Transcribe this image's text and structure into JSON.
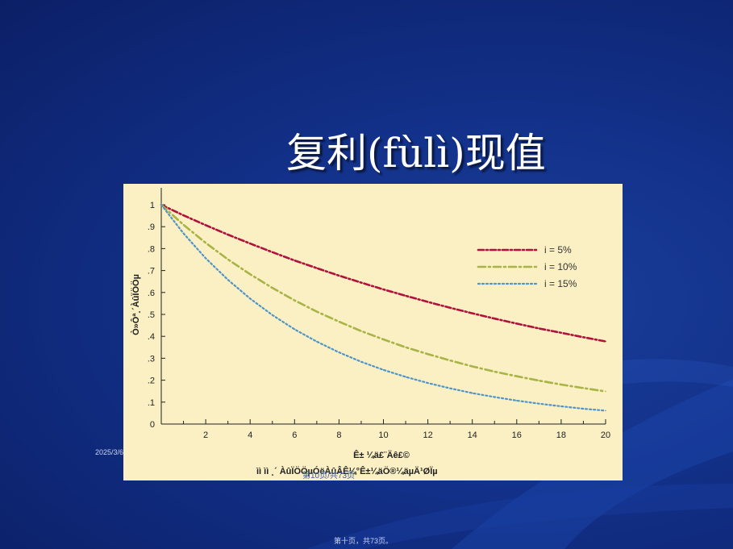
{
  "slide": {
    "title": "复利(fùlì)现值",
    "date": "2025/3/6",
    "footer_page": "第十页，共73页。",
    "overlay_page": "第10页/共73页"
  },
  "colors": {
    "background": "#123088",
    "chart_bg": "#fbefc4",
    "series_5": "#b0123c",
    "series_10": "#a8b445",
    "series_15": "#4f95c8"
  },
  "chart_data": {
    "type": "line",
    "ylabel": "Ò»Ôª¸´ÀûÏÖÖµ",
    "xlabel": "Ê±   ¼ä£¨Äê£©",
    "note": "ìì ìì ¸´  ÀûÏÖÖµÓëÀûÂÊ¼°Ê±¼äÖ®¼äµÄ¹ØÏµ",
    "xlim": [
      0,
      20
    ],
    "ylim": [
      0,
      1
    ],
    "x_ticks": [
      "2",
      "4",
      "6",
      "8",
      "10",
      "12",
      "14",
      "16",
      "18",
      "20"
    ],
    "y_ticks": [
      "0",
      ".1",
      ".2",
      ".3",
      ".4",
      ".5",
      ".6",
      ".7",
      ".8",
      ".9",
      "1"
    ],
    "legend_position": "top-right",
    "grid": false,
    "x": [
      0,
      1,
      2,
      3,
      4,
      5,
      6,
      7,
      8,
      9,
      10,
      11,
      12,
      13,
      14,
      15,
      16,
      17,
      18,
      19,
      20
    ],
    "series": [
      {
        "name": "i = 5%",
        "values": [
          1.0,
          0.952,
          0.907,
          0.864,
          0.823,
          0.784,
          0.746,
          0.711,
          0.677,
          0.645,
          0.614,
          0.585,
          0.557,
          0.53,
          0.505,
          0.481,
          0.458,
          0.436,
          0.416,
          0.396,
          0.377
        ]
      },
      {
        "name": "i = 10%",
        "values": [
          1.0,
          0.909,
          0.826,
          0.751,
          0.683,
          0.621,
          0.564,
          0.513,
          0.467,
          0.424,
          0.386,
          0.35,
          0.319,
          0.29,
          0.263,
          0.239,
          0.218,
          0.198,
          0.18,
          0.164,
          0.149
        ]
      },
      {
        "name": "i = 15%",
        "values": [
          1.0,
          0.87,
          0.756,
          0.658,
          0.572,
          0.497,
          0.432,
          0.376,
          0.327,
          0.284,
          0.247,
          0.215,
          0.187,
          0.163,
          0.141,
          0.123,
          0.107,
          0.093,
          0.081,
          0.07,
          0.061
        ]
      }
    ]
  }
}
